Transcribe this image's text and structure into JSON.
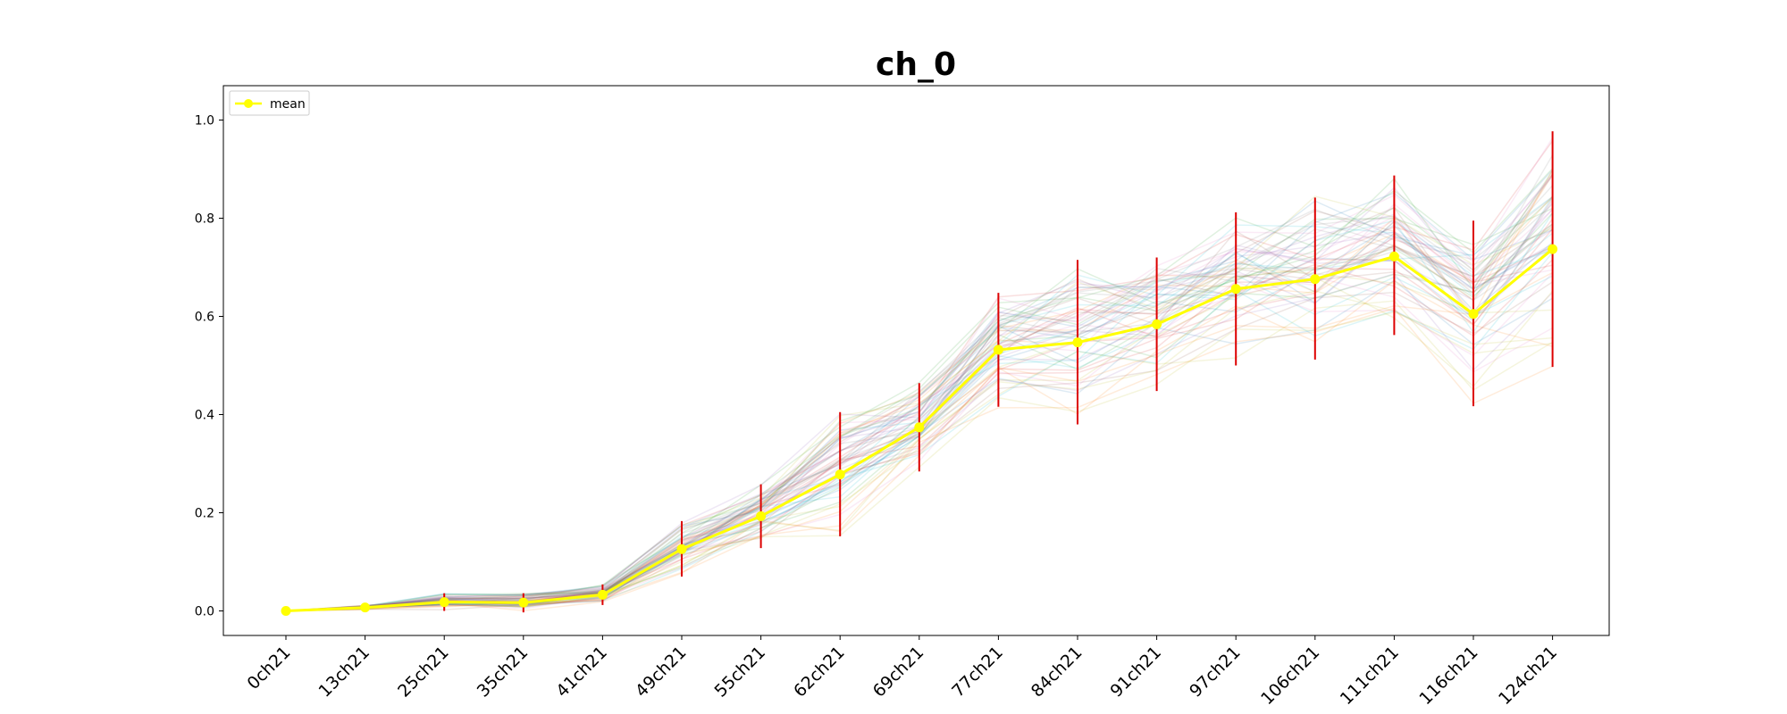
{
  "chart_data": {
    "type": "line",
    "title": "ch_0",
    "xlabel": "",
    "ylabel": "",
    "categories": [
      "0ch21",
      "13ch21",
      "25ch21",
      "35ch21",
      "41ch21",
      "49ch21",
      "55ch21",
      "62ch21",
      "69ch21",
      "77ch21",
      "84ch21",
      "91ch21",
      "97ch21",
      "106ch21",
      "111ch21",
      "116ch21",
      "124ch21"
    ],
    "ylim": [
      -0.05,
      1.07
    ],
    "yticks": [
      "0.0",
      "0.2",
      "0.4",
      "0.6",
      "0.8",
      "1.0"
    ],
    "grid": false,
    "legend": {
      "position": "top-left",
      "entries": [
        "mean"
      ]
    },
    "series": [
      {
        "name": "mean",
        "color": "#ffff00",
        "values": [
          0.0,
          0.007,
          0.018,
          0.017,
          0.033,
          0.126,
          0.193,
          0.278,
          0.374,
          0.532,
          0.547,
          0.584,
          0.656,
          0.676,
          0.722,
          0.605,
          0.737
        ],
        "error_low": [
          0.0,
          0.003,
          0.0,
          -0.003,
          0.012,
          0.07,
          0.128,
          0.152,
          0.284,
          0.416,
          0.38,
          0.448,
          0.5,
          0.512,
          0.562,
          0.417,
          0.497
        ],
        "error_high": [
          0.0,
          0.012,
          0.036,
          0.036,
          0.054,
          0.183,
          0.258,
          0.405,
          0.464,
          0.648,
          0.715,
          0.72,
          0.812,
          0.842,
          0.887,
          0.795,
          0.977
        ]
      }
    ],
    "background_traces": {
      "count": 60,
      "alpha": 0.15,
      "colors": [
        "#1f77b4",
        "#ff7f0e",
        "#2ca02c",
        "#d62728",
        "#9467bd",
        "#8c564b",
        "#e377c2",
        "#7f7f7f",
        "#bcbd22",
        "#17becf"
      ]
    },
    "errorbar_color": "#dd0000"
  }
}
